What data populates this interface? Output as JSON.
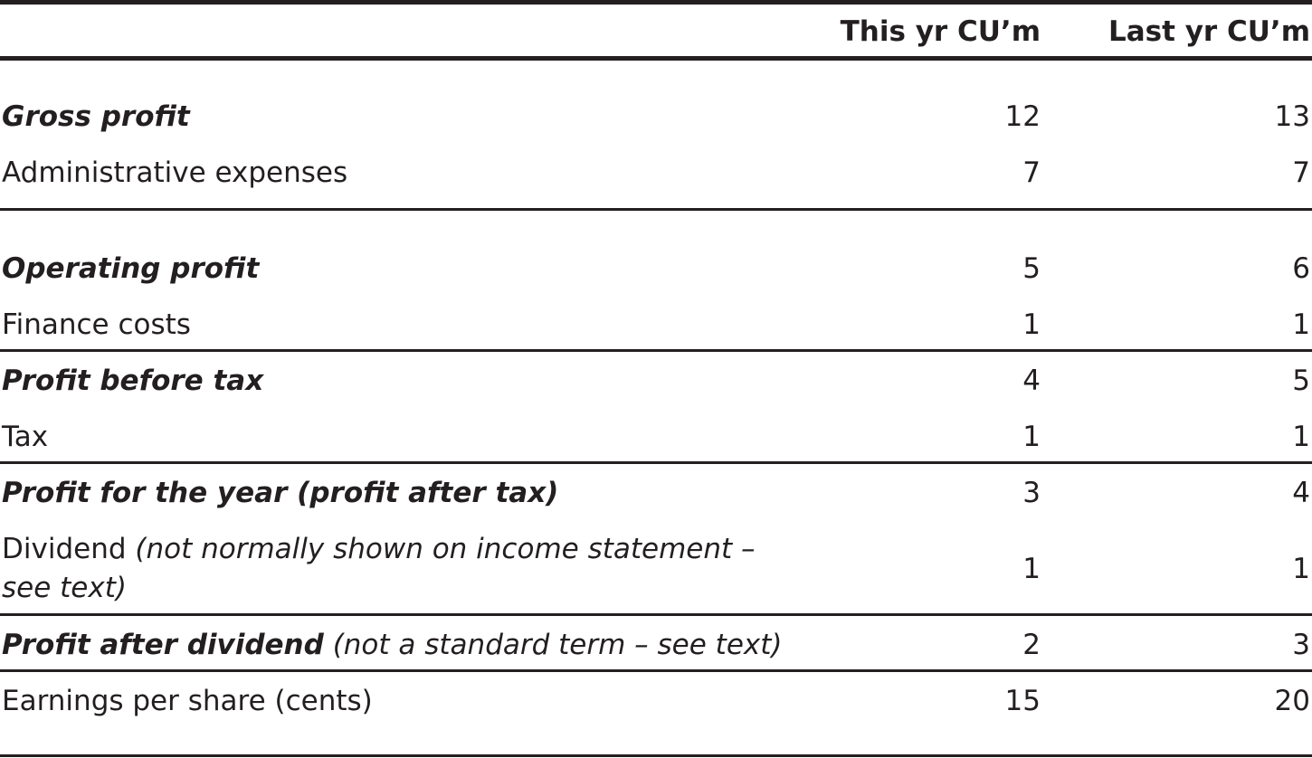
{
  "header": {
    "col_this": "This yr CU’m",
    "col_last": "Last yr CU’m"
  },
  "rows": [
    {
      "label": "Gross profit",
      "note": "",
      "this_yr": "12",
      "last_yr": "13",
      "bold": true
    },
    {
      "label": "Administrative expenses",
      "note": "",
      "this_yr": "7",
      "last_yr": "7",
      "bold": false
    },
    {
      "label": "Operating profit",
      "note": "",
      "this_yr": "5",
      "last_yr": "6",
      "bold": true
    },
    {
      "label": "Finance costs",
      "note": "",
      "this_yr": "1",
      "last_yr": "1",
      "bold": false
    },
    {
      "label": "Profit before tax",
      "note": "",
      "this_yr": "4",
      "last_yr": "5",
      "bold": true
    },
    {
      "label": "Tax",
      "note": "",
      "this_yr": "1",
      "last_yr": "1",
      "bold": false
    },
    {
      "label": "Profit for the year (profit after tax)",
      "note": "",
      "this_yr": "3",
      "last_yr": "4",
      "bold": true
    },
    {
      "label": "Dividend",
      "note": "(not normally shown on income statement – see text)",
      "this_yr": "1",
      "last_yr": "1",
      "bold": false
    },
    {
      "label": "Profit after dividend",
      "note": "(not a standard term – see text)",
      "this_yr": "2",
      "last_yr": "3",
      "bold": true
    },
    {
      "label": "Earnings per share (cents)",
      "note": "",
      "this_yr": "15",
      "last_yr": "20",
      "bold": false
    }
  ]
}
